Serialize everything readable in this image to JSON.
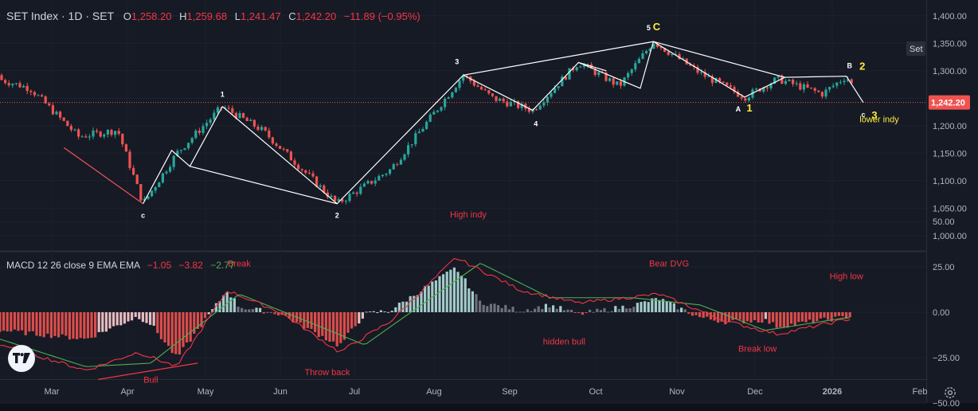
{
  "header": {
    "symbol": "SET Index · 1D · SET",
    "open_label": "O",
    "open": "1,258.20",
    "high_label": "H",
    "high": "1,259.68",
    "low_label": "L",
    "low": "1,241.47",
    "close_label": "C",
    "close": "1,242.20",
    "change": "−11.89 (−0.95%)"
  },
  "price_axis": {
    "ticks": [
      "1,400.00",
      "1,350.00",
      "1,300.00",
      "1,250.00",
      "1,200.00",
      "1,150.00",
      "1,100.00",
      "1,050.00",
      "1,000.00"
    ],
    "tick_values": [
      1400,
      1350,
      1300,
      1250,
      1200,
      1150,
      1100,
      1050,
      1000
    ],
    "symbol_tag": "Set",
    "last_price_label": "1,242.20",
    "last_price": 1242.2
  },
  "macd": {
    "label": "MACD 12 26 close 9 EMA EMA",
    "v1": "−1.05",
    "v2": "−3.82",
    "v3": "−2.77",
    "ticks": [
      "50.00",
      "25.00",
      "0.00",
      "−25.00",
      "−50.00"
    ],
    "tick_values": [
      50,
      25,
      0,
      -25,
      -50
    ]
  },
  "time_axis": {
    "labels": [
      "Mar",
      "Apr",
      "May",
      "Jun",
      "Jul",
      "Aug",
      "Sep",
      "Oct",
      "Nov",
      "Dec",
      "2026",
      "Feb"
    ]
  },
  "colors": {
    "background": "#161a25",
    "up": "#26a69a",
    "down": "#ef5350",
    "wave": "#ffffff",
    "annotation_red": "#f23645",
    "annotation_yellow": "#ffeb3b",
    "macd_line": "#f23645",
    "signal_line": "#4caf50"
  },
  "chart_data": {
    "type": "candlestick",
    "title": "SET Index · 1D · SET",
    "ylim": [
      975,
      1420
    ],
    "wave_points": [
      {
        "label": "c",
        "t": "2025-04-07",
        "price": 1058
      },
      {
        "label": "1",
        "t": "2025-05-08",
        "price": 1235
      },
      {
        "label": "2",
        "t": "2025-06-24",
        "price": 1058
      },
      {
        "label": "3",
        "t": "2025-08-13",
        "price": 1292
      },
      {
        "label": "4",
        "t": "2025-09-09",
        "price": 1228
      },
      {
        "label": "5",
        "t": "2025-10-23",
        "price": 1353
      },
      {
        "label": "C",
        "t": "2025-10-23",
        "price": 1353
      },
      {
        "label": "A",
        "t": "2025-11-27",
        "price": 1252
      },
      {
        "label": "1",
        "t": "2025-11-27",
        "price": 1252
      },
      {
        "label": "B",
        "t": "2026-01-06",
        "price": 1290
      },
      {
        "label": "2",
        "t": "2026-01-06",
        "price": 1290
      },
      {
        "label": "c",
        "t": "2026-01-12",
        "price": 1242
      },
      {
        "label": "3",
        "t": "2026-01-12",
        "price": 1242
      }
    ],
    "price_annotations": [
      {
        "text": "lower indy",
        "t": "2026-01-12",
        "price": 1212
      }
    ],
    "macd_annotations": [
      {
        "text": "Bull",
        "t": "2025-04-10",
        "value": -37
      },
      {
        "text": "Break",
        "t": "2025-05-15",
        "value": 27
      },
      {
        "text": "Throw back",
        "t": "2025-06-20",
        "value": -33
      },
      {
        "text": "High indy",
        "t": "2025-08-15",
        "value": 54
      },
      {
        "text": "hidden bull",
        "t": "2025-09-20",
        "value": -16
      },
      {
        "text": "Bear DVG",
        "t": "2025-10-29",
        "value": 27
      },
      {
        "text": "Break low",
        "t": "2025-12-02",
        "value": -20
      },
      {
        "text": "High low",
        "t": "2026-01-06",
        "value": 20
      }
    ],
    "xlabel": "",
    "ylabel": ""
  }
}
